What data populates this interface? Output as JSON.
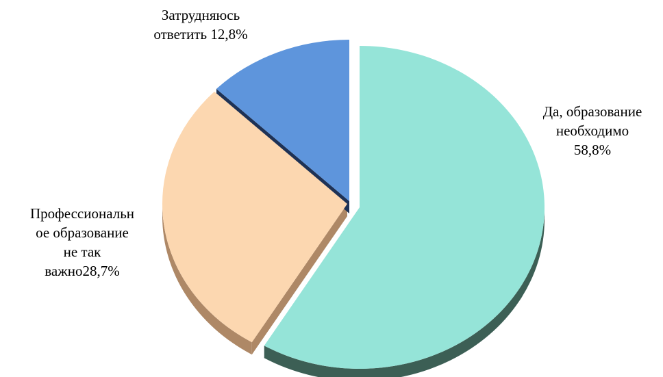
{
  "chart_data": {
    "type": "pie",
    "style": "3d-exploded",
    "title": "",
    "slices": [
      {
        "label_lines": [
          "Да, образование",
          "необходимо",
          "58,8%"
        ],
        "value": 58.8,
        "color": "#95e4d8",
        "side_color": "#3c5f55"
      },
      {
        "label_lines": [
          "Профессиональн",
          "ое образование",
          "не так",
          "важно28,7%"
        ],
        "value": 28.7,
        "color": "#fcd7b0",
        "side_color": "#ae8866"
      },
      {
        "label_lines": [
          "Затрудняюсь",
          "ответить 12,8%"
        ],
        "value": 12.8,
        "color": "#5e95dc",
        "side_color": "#1e3256"
      }
    ]
  }
}
